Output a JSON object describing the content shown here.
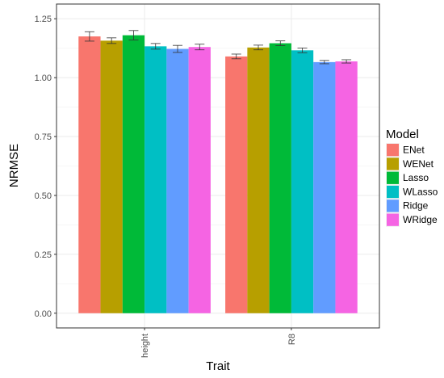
{
  "chart_data": {
    "type": "bar",
    "title": "",
    "xlabel": "Trait",
    "ylabel": "NRMSE",
    "categories": [
      "height",
      "R8"
    ],
    "ylim": [
      0,
      1.25
    ],
    "yticks": [
      "0.00",
      "0.25",
      "0.50",
      "0.75",
      "1.00",
      "1.25"
    ],
    "grid": true,
    "legend": {
      "title": "Model",
      "placement": "right"
    },
    "error_bars": true,
    "series": [
      {
        "name": "ENet",
        "color": "#F8766D",
        "values": [
          1.175,
          1.09
        ],
        "errors": [
          0.02,
          0.01
        ]
      },
      {
        "name": "WENet",
        "color": "#B79F00",
        "values": [
          1.157,
          1.128
        ],
        "errors": [
          0.012,
          0.01
        ]
      },
      {
        "name": "Lasso",
        "color": "#00BA38",
        "values": [
          1.18,
          1.146
        ],
        "errors": [
          0.02,
          0.01
        ]
      },
      {
        "name": "WLasso",
        "color": "#00BFC4",
        "values": [
          1.133,
          1.116
        ],
        "errors": [
          0.012,
          0.01
        ]
      },
      {
        "name": "Ridge",
        "color": "#619CFF",
        "values": [
          1.122,
          1.066
        ],
        "errors": [
          0.015,
          0.007
        ]
      },
      {
        "name": "WRidge",
        "color": "#F564E3",
        "values": [
          1.13,
          1.069
        ],
        "errors": [
          0.012,
          0.007
        ]
      }
    ]
  }
}
